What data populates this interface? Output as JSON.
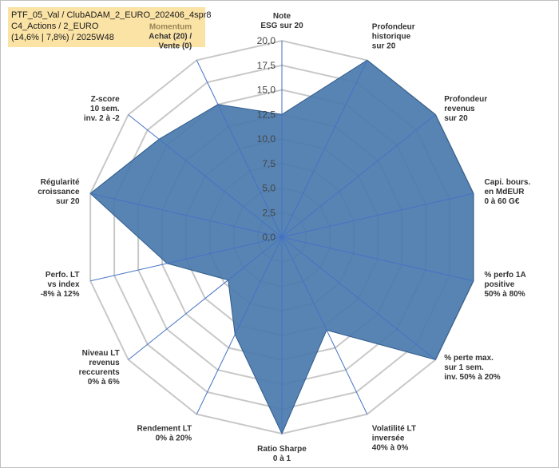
{
  "colors": {
    "series_fill": "#4a7aae",
    "series_stroke": "#2f5a8a",
    "grid": "#c8c8c8",
    "spoke": "#4472c4",
    "title_bg": "#fbe3a6"
  },
  "chart_data": {
    "type": "radar",
    "title_lines": [
      "PTF_05_Val / ClubADAM_2_EURO_202406_4spr8",
      "C4_Actions / 2_EURO",
      "(14,6% | 7,8%) / 2025W48"
    ],
    "rlim": [
      0,
      20
    ],
    "ticks": [
      "0,0",
      "2,5",
      "5,0",
      "7,5",
      "10,0",
      "12,5",
      "15,0",
      "17,5",
      "20,0"
    ],
    "grid": true,
    "legend": "none",
    "axes": [
      {
        "lines": [
          "Note",
          "ESG sur 20"
        ],
        "value": 12.5
      },
      {
        "lines": [
          "Profondeur",
          "historique",
          "sur 20"
        ],
        "value": 20
      },
      {
        "lines": [
          "Profondeur",
          "revenus",
          "sur 20"
        ],
        "value": 20
      },
      {
        "lines": [
          "Capi. bours.",
          "en MdEUR",
          "0 à 60 G€"
        ],
        "value": 20
      },
      {
        "lines": [
          "% perfo 1A",
          "positive",
          "50% à 80%"
        ],
        "value": 20
      },
      {
        "lines": [
          "% perte max.",
          "sur 1 sem.",
          "inv. 50% à 20%"
        ],
        "value": 20
      },
      {
        "lines": [
          "Volatilité LT",
          "inversée",
          "40% à 0%"
        ],
        "value": 10.5
      },
      {
        "lines": [
          "Ratio Sharpe",
          "0 à 1"
        ],
        "value": 20
      },
      {
        "lines": [
          "Rendement LT",
          "0% à 20%"
        ],
        "value": 11
      },
      {
        "lines": [
          "Niveau LT",
          "revenus",
          "reccurents",
          "0% à 6%"
        ],
        "value": 7
      },
      {
        "lines": [
          "Perfo. LT",
          "vs index",
          "-8% à 12%"
        ],
        "value": 12
      },
      {
        "lines": [
          "Régularité",
          "croissance",
          "sur 20"
        ],
        "value": 20
      },
      {
        "lines": [
          "Z-score",
          "10 sem.",
          "inv. 2 à -2"
        ],
        "value": 16
      },
      {
        "lines": [
          "Momentum",
          "Achat (20) /",
          "Vente (0)"
        ],
        "value": 15
      }
    ]
  }
}
